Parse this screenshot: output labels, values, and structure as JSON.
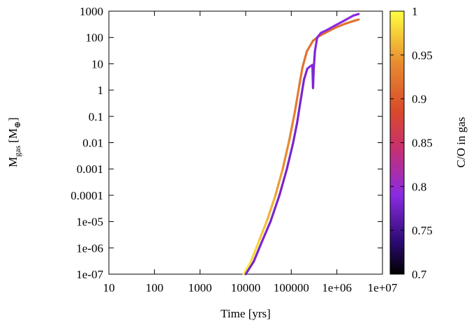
{
  "chart_data": {
    "type": "line",
    "xlabel": "Time [yrs]",
    "ylabel_main": "M",
    "ylabel_sub": "gas",
    "ylabel_unit": "[M",
    "ylabel_unit_symbol": "⊕",
    "ylabel_close": "]",
    "x_scale": "log",
    "y_scale": "log",
    "xlim": [
      10,
      10000000
    ],
    "ylim": [
      1e-07,
      1000
    ],
    "x_ticks": [
      {
        "value": 10,
        "label": "10"
      },
      {
        "value": 100,
        "label": "100"
      },
      {
        "value": 1000,
        "label": "1000"
      },
      {
        "value": 10000,
        "label": "10000"
      },
      {
        "value": 100000,
        "label": "100000"
      },
      {
        "value": 1000000,
        "label": "1e+06"
      },
      {
        "value": 10000000,
        "label": "1e+07"
      }
    ],
    "y_ticks": [
      {
        "value": 1e-07,
        "label": "1e-07"
      },
      {
        "value": 1e-06,
        "label": "1e-06"
      },
      {
        "value": 1e-05,
        "label": "1e-05"
      },
      {
        "value": 0.0001,
        "label": "0.0001"
      },
      {
        "value": 0.001,
        "label": "0.001"
      },
      {
        "value": 0.01,
        "label": "0.01"
      },
      {
        "value": 0.1,
        "label": "0.1"
      },
      {
        "value": 1,
        "label": "1"
      },
      {
        "value": 10,
        "label": "10"
      },
      {
        "value": 100,
        "label": "100"
      },
      {
        "value": 1000,
        "label": "1000"
      }
    ],
    "colorbar": {
      "label": "C/O in gas",
      "range": [
        0.7,
        1.0
      ],
      "ticks": [
        {
          "value": 0.7,
          "label": "0.7"
        },
        {
          "value": 0.75,
          "label": "0.75"
        },
        {
          "value": 0.8,
          "label": "0.8"
        },
        {
          "value": 0.85,
          "label": "0.85"
        },
        {
          "value": 0.9,
          "label": "0.9"
        },
        {
          "value": 0.95,
          "label": "0.95"
        },
        {
          "value": 1.0,
          "label": "1"
        }
      ],
      "colormap": [
        "#000000",
        "#3a0a7a",
        "#8a2be2",
        "#c2307a",
        "#d94a2a",
        "#e0803a",
        "#f0c040",
        "#ffff40"
      ]
    },
    "series": [
      {
        "points": [
          {
            "x": 9000,
            "y": 1e-07,
            "c": 0.995
          },
          {
            "x": 13000,
            "y": 3e-07,
            "c": 0.985
          },
          {
            "x": 20000,
            "y": 2e-06,
            "c": 0.975
          },
          {
            "x": 30000,
            "y": 1.2e-05,
            "c": 0.965
          },
          {
            "x": 45000,
            "y": 0.0001,
            "c": 0.955
          },
          {
            "x": 65000,
            "y": 0.001,
            "c": 0.945
          },
          {
            "x": 90000,
            "y": 0.012,
            "c": 0.935
          },
          {
            "x": 120000,
            "y": 0.15,
            "c": 0.93
          },
          {
            "x": 150000,
            "y": 1.5,
            "c": 0.925
          },
          {
            "x": 175000,
            "y": 7,
            "c": 0.92
          },
          {
            "x": 220000,
            "y": 30,
            "c": 0.92
          },
          {
            "x": 300000,
            "y": 75,
            "c": 0.92
          },
          {
            "x": 400000,
            "y": 110,
            "c": 0.92
          },
          {
            "x": 600000,
            "y": 160,
            "c": 0.92
          },
          {
            "x": 900000,
            "y": 230,
            "c": 0.92
          },
          {
            "x": 1500000,
            "y": 330,
            "c": 0.92
          },
          {
            "x": 2300000,
            "y": 420,
            "c": 0.92
          },
          {
            "x": 3000000,
            "y": 480,
            "c": 0.92
          }
        ]
      },
      {
        "points": [
          {
            "x": 10000,
            "y": 1e-07,
            "c": 0.78
          },
          {
            "x": 15000,
            "y": 3e-07,
            "c": 0.78
          },
          {
            "x": 22000,
            "y": 1.5e-06,
            "c": 0.78
          },
          {
            "x": 35000,
            "y": 1e-05,
            "c": 0.78
          },
          {
            "x": 55000,
            "y": 0.0001,
            "c": 0.78
          },
          {
            "x": 80000,
            "y": 0.001,
            "c": 0.78
          },
          {
            "x": 110000,
            "y": 0.01,
            "c": 0.78
          },
          {
            "x": 135000,
            "y": 0.06,
            "c": 0.78
          },
          {
            "x": 160000,
            "y": 0.4,
            "c": 0.78
          },
          {
            "x": 190000,
            "y": 2.5,
            "c": 0.78
          },
          {
            "x": 225000,
            "y": 6.5,
            "c": 0.785
          },
          {
            "x": 260000,
            "y": 8,
            "c": 0.79
          },
          {
            "x": 290000,
            "y": 9,
            "c": 0.79
          },
          {
            "x": 300000,
            "y": 1.2,
            "c": 0.785
          },
          {
            "x": 310000,
            "y": 6,
            "c": 0.78
          },
          {
            "x": 330000,
            "y": 30,
            "c": 0.785
          },
          {
            "x": 370000,
            "y": 100,
            "c": 0.79
          },
          {
            "x": 450000,
            "y": 150,
            "c": 0.79
          },
          {
            "x": 600000,
            "y": 190,
            "c": 0.79
          },
          {
            "x": 900000,
            "y": 280,
            "c": 0.79
          },
          {
            "x": 1500000,
            "y": 450,
            "c": 0.79
          },
          {
            "x": 2300000,
            "y": 680,
            "c": 0.79
          },
          {
            "x": 3000000,
            "y": 780,
            "c": 0.79
          }
        ]
      }
    ]
  }
}
